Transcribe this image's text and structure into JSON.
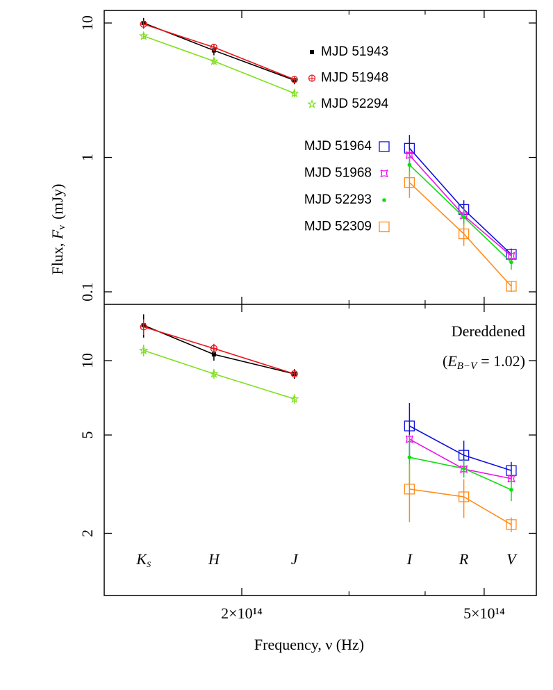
{
  "x_label": "Frequency, ν (Hz)",
  "y_label": {
    "prefix": "Flux,",
    "symbol": "F",
    "subscript": "ν",
    "unit": "(mJy)"
  },
  "chart_data": [
    {
      "type": "line",
      "xscale": "log",
      "yscale": "log",
      "xlim": [
        118900000000000.0,
        609000000000000.0
      ],
      "xticks": [
        {
          "value": 200000000000000.0,
          "label": "2×10¹⁴"
        },
        {
          "value": 500000000000000.0,
          "label": "5×10¹⁴"
        }
      ],
      "xminorticks": [
        300000000000000.0,
        400000000000000.0
      ],
      "ylim": [
        0.0807,
        12.4
      ],
      "yticks": [
        10,
        1,
        0.1
      ],
      "series": [
        {
          "name": "MJD 51943",
          "color": "#000000",
          "marker": "dot-square",
          "x": [
            138000000000000.0,
            180000000000000.0,
            244000000000000.0
          ],
          "values": [
            10.0,
            6.25,
            3.75
          ],
          "errors": [
            0.9,
            0.5,
            0.25
          ]
        },
        {
          "name": "MJD 51948",
          "color": "#e8161b",
          "marker": "circle-plus",
          "x": [
            138000000000000.0,
            180000000000000.0,
            244000000000000.0
          ],
          "values": [
            9.8,
            6.6,
            3.8
          ],
          "errors": [
            0.6,
            0.4,
            0.2
          ]
        },
        {
          "name": "MJD 52294",
          "color": "#7fe01e",
          "marker": "star",
          "x": [
            138000000000000.0,
            180000000000000.0,
            244000000000000.0
          ],
          "values": [
            8.0,
            5.2,
            3.0
          ],
          "errors": [
            0.4,
            0.3,
            0.2
          ]
        },
        {
          "name": "MJD 51964",
          "color": "#1010dd",
          "marker": "open-square",
          "x": [
            377000000000000.0,
            463000000000000.0,
            554000000000000.0
          ],
          "values": [
            1.17,
            0.41,
            0.19
          ],
          "errors": [
            0.3,
            0.07,
            0.02
          ]
        },
        {
          "name": "MJD 51968",
          "color": "#ee10ee",
          "marker": "curved-square",
          "x": [
            377000000000000.0,
            463000000000000.0,
            554000000000000.0
          ],
          "values": [
            1.04,
            0.37,
            0.185
          ],
          "errors": [
            0.1,
            0.05,
            0.02
          ]
        },
        {
          "name": "MJD 52293",
          "color": "#10dd10",
          "marker": "dot",
          "x": [
            377000000000000.0,
            463000000000000.0,
            554000000000000.0
          ],
          "values": [
            0.88,
            0.36,
            0.166
          ],
          "errors": [
            0.15,
            0.05,
            0.02
          ]
        },
        {
          "name": "MJD 52309",
          "color": "#ff8c1a",
          "marker": "open-square",
          "x": [
            377000000000000.0,
            463000000000000.0,
            554000000000000.0
          ],
          "values": [
            0.65,
            0.27,
            0.11
          ],
          "errors": [
            0.15,
            0.05,
            0.01
          ]
        }
      ]
    },
    {
      "type": "line",
      "xscale": "log",
      "yscale": "log",
      "xlim": [
        118900000000000.0,
        609000000000000.0
      ],
      "xticks": [
        {
          "value": 200000000000000.0,
          "label": "2×10¹⁴"
        },
        {
          "value": 500000000000000.0,
          "label": "5×10¹⁴"
        }
      ],
      "xminorticks": [
        300000000000000.0,
        400000000000000.0
      ],
      "ylim": [
        1.12,
        16.9
      ],
      "yticks": [
        10,
        5,
        2
      ],
      "annotation": "Dereddened",
      "annotation_2": {
        "prefix": "(",
        "symbol": "E",
        "subscript": "B−V",
        "text": "= 1.02)"
      },
      "band_labels": [
        {
          "text": "K",
          "sub": "S",
          "x": 138000000000000.0
        },
        {
          "text": "H",
          "x": 180000000000000.0
        },
        {
          "text": "J",
          "x": 244000000000000.0
        },
        {
          "text": "I",
          "x": 377000000000000.0
        },
        {
          "text": "R",
          "x": 463000000000000.0
        },
        {
          "text": "V",
          "x": 554000000000000.0
        }
      ],
      "series": [
        {
          "color": "#000000",
          "marker": "dot-square",
          "x": [
            138000000000000.0,
            180000000000000.0,
            244000000000000.0
          ],
          "values": [
            13.9,
            10.6,
            8.84
          ],
          "errors": [
            1.5,
            0.6,
            0.4
          ]
        },
        {
          "color": "#e8161b",
          "marker": "circle-plus",
          "x": [
            138000000000000.0,
            180000000000000.0,
            244000000000000.0
          ],
          "values": [
            13.7,
            11.2,
            8.84
          ],
          "errors": [
            1.0,
            0.5,
            0.3
          ]
        },
        {
          "color": "#7fe01e",
          "marker": "star",
          "x": [
            138000000000000.0,
            180000000000000.0,
            244000000000000.0
          ],
          "values": [
            11.0,
            8.84,
            7.0
          ],
          "errors": [
            0.6,
            0.4,
            0.3
          ]
        },
        {
          "color": "#1010dd",
          "marker": "open-square",
          "x": [
            377000000000000.0,
            463000000000000.0,
            554000000000000.0
          ],
          "values": [
            5.44,
            4.14,
            3.59
          ],
          "errors": [
            1.3,
            0.6,
            0.3
          ]
        },
        {
          "color": "#ee10ee",
          "marker": "curved-square",
          "x": [
            377000000000000.0,
            463000000000000.0,
            554000000000000.0
          ],
          "values": [
            4.81,
            3.64,
            3.33
          ],
          "errors": [
            0.2,
            0.15,
            0.15
          ]
        },
        {
          "color": "#10dd10",
          "marker": "dot",
          "x": [
            377000000000000.0,
            463000000000000.0,
            554000000000000.0
          ],
          "values": [
            4.06,
            3.66,
            3.0
          ],
          "errors": [
            0.9,
            0.3,
            0.3
          ]
        },
        {
          "color": "#ff8c1a",
          "marker": "open-square",
          "x": [
            377000000000000.0,
            463000000000000.0,
            554000000000000.0
          ],
          "values": [
            3.02,
            2.81,
            2.17
          ],
          "errors": [
            0.8,
            0.5,
            0.15
          ]
        }
      ]
    }
  ]
}
